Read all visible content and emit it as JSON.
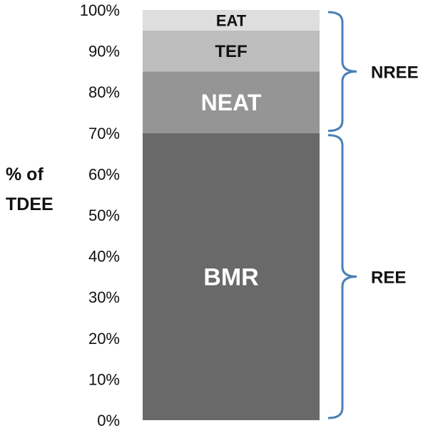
{
  "chart_data": {
    "type": "bar",
    "stacked": true,
    "ylabel_lines": [
      "% of",
      "TDEE"
    ],
    "ylim": [
      0,
      100
    ],
    "yticks": [
      "0%",
      "10%",
      "20%",
      "30%",
      "40%",
      "50%",
      "60%",
      "70%",
      "80%",
      "90%",
      "100%"
    ],
    "segments": [
      {
        "label": "BMR",
        "start": 0,
        "end": 70,
        "color": "#696969",
        "text_color": "#ffffff"
      },
      {
        "label": "NEAT",
        "start": 70,
        "end": 85,
        "color": "#959595",
        "text_color": "#ffffff"
      },
      {
        "label": "TEF",
        "start": 85,
        "end": 95,
        "color": "#bdbdbd",
        "text_color": "#111111"
      },
      {
        "label": "EAT",
        "start": 95,
        "end": 100,
        "color": "#dedede",
        "text_color": "#111111"
      }
    ],
    "brackets": [
      {
        "label": "NREE",
        "start": 70,
        "end": 100
      },
      {
        "label": "REE",
        "start": 0,
        "end": 70
      }
    ],
    "bracket_color": "#4a7fb5"
  }
}
